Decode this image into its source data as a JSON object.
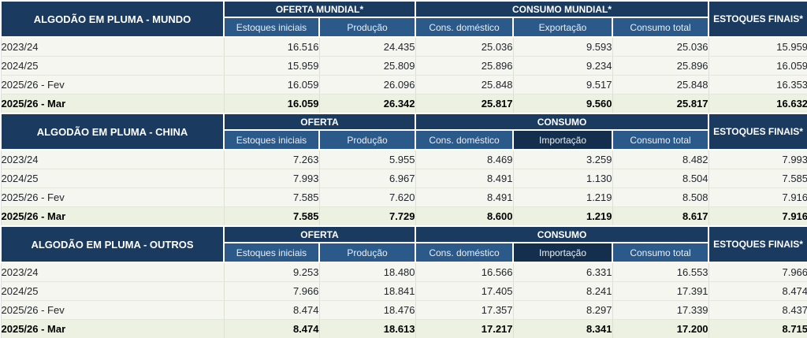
{
  "colors": {
    "header_navy": "#1b3a5f",
    "header_blue": "#2b5a8a",
    "trade_dark": "#142e4d",
    "row_bg": "#f4f6ef",
    "total_row_bg": "#ecf1e1",
    "row_divider": "#e3e8da",
    "col_divider": "#dce1d3",
    "data_text": "#22262d"
  },
  "sections": [
    {
      "id": "mundo",
      "title": "ALGODÃO EM PLUMA - MUNDO",
      "supply_header": "OFERTA MUNDIAL*",
      "consumption_header": "CONSUMO MUNDIAL*",
      "finals_header": "ESTOQUES FINAIS*",
      "columns": [
        "Estoques iniciais",
        "Produção",
        "Cons. doméstico",
        "Exportação",
        "Consumo total"
      ],
      "rows": [
        {
          "label": "2023/24",
          "bold": false,
          "values": [
            "16.516",
            "24.435",
            "25.036",
            "9.593",
            "25.036",
            "15.959"
          ]
        },
        {
          "label": "2024/25",
          "bold": false,
          "values": [
            "15.959",
            "25.809",
            "25.896",
            "9.234",
            "25.896",
            "16.059"
          ]
        },
        {
          "label": "2025/26 - Fev",
          "bold": false,
          "values": [
            "16.059",
            "26.096",
            "25.848",
            "9.517",
            "25.848",
            "16.353"
          ]
        },
        {
          "label": "2025/26 - Mar",
          "bold": true,
          "values": [
            "16.059",
            "26.342",
            "25.817",
            "9.560",
            "25.817",
            "16.632"
          ]
        }
      ]
    },
    {
      "id": "china",
      "title": "ALGODÃO EM PLUMA - CHINA",
      "supply_header": "OFERTA",
      "consumption_header": "CONSUMO",
      "finals_header": "ESTOQUES FINAIS*",
      "columns": [
        "Estoques iniciais",
        "Produção",
        "Cons. doméstico",
        "Importação",
        "Consumo total"
      ],
      "rows": [
        {
          "label": "2023/24",
          "bold": false,
          "values": [
            "7.263",
            "5.955",
            "8.469",
            "3.259",
            "8.482",
            "7.993"
          ]
        },
        {
          "label": "2024/25",
          "bold": false,
          "values": [
            "7.993",
            "6.967",
            "8.491",
            "1.130",
            "8.504",
            "7.585"
          ]
        },
        {
          "label": "2025/26 - Fev",
          "bold": false,
          "values": [
            "7.585",
            "7.620",
            "8.491",
            "1.219",
            "8.508",
            "7.916"
          ]
        },
        {
          "label": "2025/26 - Mar",
          "bold": true,
          "values": [
            "7.585",
            "7.729",
            "8.600",
            "1.219",
            "8.617",
            "7.916"
          ]
        }
      ]
    },
    {
      "id": "outros",
      "title": "ALGODÃO EM PLUMA - OUTROS",
      "supply_header": "OFERTA",
      "consumption_header": "CONSUMO",
      "finals_header": "ESTOQUES FINAIS*",
      "columns": [
        "Estoques iniciais",
        "Produção",
        "Cons. doméstico",
        "Importação",
        "Consumo total"
      ],
      "rows": [
        {
          "label": "2023/24",
          "bold": false,
          "values": [
            "9.253",
            "18.480",
            "16.566",
            "6.331",
            "16.553",
            "7.966"
          ]
        },
        {
          "label": "2024/25",
          "bold": false,
          "values": [
            "7.966",
            "18.841",
            "17.405",
            "8.241",
            "17.391",
            "8.474"
          ]
        },
        {
          "label": "2025/26 - Fev",
          "bold": false,
          "values": [
            "8.474",
            "18.476",
            "17.357",
            "8.297",
            "17.339",
            "8.437"
          ]
        },
        {
          "label": "2025/26 - Mar",
          "bold": true,
          "values": [
            "8.474",
            "18.613",
            "17.217",
            "8.341",
            "17.200",
            "8.715"
          ]
        }
      ]
    }
  ],
  "chart_data": [
    {
      "type": "table",
      "title": "ALGODÃO EM PLUMA - MUNDO",
      "column_groups": [
        "OFERTA MUNDIAL*",
        "CONSUMO MUNDIAL*",
        "ESTOQUES FINAIS*"
      ],
      "columns": [
        "Estoques iniciais",
        "Produção",
        "Cons. doméstico",
        "Exportação",
        "Consumo total",
        "Estoques finais"
      ],
      "rows": [
        {
          "label": "2023/24",
          "values": [
            16516,
            24435,
            25036,
            9593,
            25036,
            15959
          ]
        },
        {
          "label": "2024/25",
          "values": [
            15959,
            25809,
            25896,
            9234,
            25896,
            16059
          ]
        },
        {
          "label": "2025/26 - Fev",
          "values": [
            16059,
            26096,
            25848,
            9517,
            25848,
            16353
          ]
        },
        {
          "label": "2025/26 - Mar",
          "values": [
            16059,
            26342,
            25817,
            9560,
            25817,
            16632
          ]
        }
      ]
    },
    {
      "type": "table",
      "title": "ALGODÃO EM PLUMA - CHINA",
      "column_groups": [
        "OFERTA",
        "CONSUMO",
        "ESTOQUES FINAIS*"
      ],
      "columns": [
        "Estoques iniciais",
        "Produção",
        "Cons. doméstico",
        "Importação",
        "Consumo total",
        "Estoques finais"
      ],
      "rows": [
        {
          "label": "2023/24",
          "values": [
            7263,
            5955,
            8469,
            3259,
            8482,
            7993
          ]
        },
        {
          "label": "2024/25",
          "values": [
            7993,
            6967,
            8491,
            1130,
            8504,
            7585
          ]
        },
        {
          "label": "2025/26 - Fev",
          "values": [
            7585,
            7620,
            8491,
            1219,
            8508,
            7916
          ]
        },
        {
          "label": "2025/26 - Mar",
          "values": [
            7585,
            7729,
            8600,
            1219,
            8617,
            7916
          ]
        }
      ]
    },
    {
      "type": "table",
      "title": "ALGODÃO EM PLUMA - OUTROS",
      "column_groups": [
        "OFERTA",
        "CONSUMO",
        "ESTOQUES FINAIS*"
      ],
      "columns": [
        "Estoques iniciais",
        "Produção",
        "Cons. doméstico",
        "Importação",
        "Consumo total",
        "Estoques finais"
      ],
      "rows": [
        {
          "label": "2023/24",
          "values": [
            9253,
            18480,
            16566,
            6331,
            16553,
            7966
          ]
        },
        {
          "label": "2024/25",
          "values": [
            7966,
            18841,
            17405,
            8241,
            17391,
            8474
          ]
        },
        {
          "label": "2025/26 - Fev",
          "values": [
            8474,
            18476,
            17357,
            8297,
            17339,
            8437
          ]
        },
        {
          "label": "2025/26 - Mar",
          "values": [
            8474,
            18613,
            17217,
            8341,
            17200,
            8715
          ]
        }
      ]
    }
  ]
}
